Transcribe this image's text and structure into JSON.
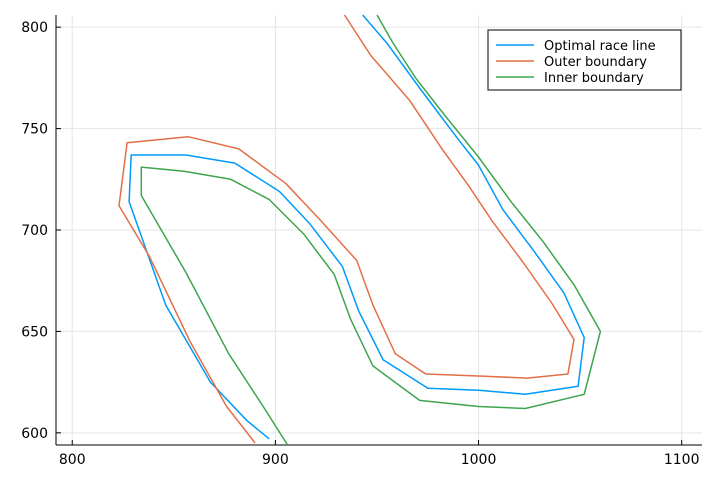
{
  "chart_data": {
    "type": "line",
    "title": "",
    "xlabel": "",
    "ylabel": "",
    "xlim": [
      792,
      1110
    ],
    "ylim": [
      594,
      806
    ],
    "xticks": [
      800,
      900,
      1000,
      1100
    ],
    "yticks": [
      600,
      650,
      700,
      750,
      800
    ],
    "grid": true,
    "legend_position": "top-right",
    "series": [
      {
        "name": "Optimal race line",
        "color": "#009AFA",
        "x": [
          897,
          886,
          868,
          846,
          828,
          829,
          856,
          880,
          902,
          917,
          933,
          941,
          953,
          975,
          1000,
          1023,
          1049,
          1052,
          1042,
          1027,
          1012,
          1000,
          989,
          971,
          955,
          943
        ],
        "y": [
          597,
          606,
          625,
          663,
          714,
          737,
          737,
          733,
          719,
          703,
          682,
          660,
          636,
          622,
          621,
          619,
          623,
          647,
          669,
          690,
          710,
          732,
          746,
          770,
          792,
          806
        ]
      },
      {
        "name": "Outer boundary",
        "color": "#E36F47",
        "x": [
          890,
          876,
          858,
          838,
          823,
          827,
          857,
          882,
          905,
          922,
          940,
          948,
          959,
          974,
          1000,
          1024,
          1044,
          1047,
          1036,
          1022,
          1007,
          995,
          982,
          966,
          947,
          934
        ],
        "y": [
          595,
          613,
          645,
          687,
          712,
          743,
          746,
          740,
          723,
          705,
          685,
          663,
          639,
          629,
          628,
          627,
          629,
          646,
          664,
          684,
          704,
          722,
          740,
          764,
          786,
          806
        ]
      },
      {
        "name": "Inner boundary",
        "color": "#3EA44E",
        "x": [
          906,
          894,
          877,
          856,
          834,
          834,
          855,
          878,
          897,
          914,
          929,
          937,
          948,
          971,
          1000,
          1023,
          1052,
          1060,
          1047,
          1032,
          1016,
          1000,
          983,
          969,
          958,
          950
        ],
        "y": [
          594,
          613,
          639,
          679,
          717,
          731,
          729,
          725,
          715,
          698,
          678,
          656,
          633,
          616,
          613,
          612,
          619,
          650,
          673,
          694,
          714,
          736,
          757,
          775,
          792,
          806
        ]
      }
    ]
  }
}
